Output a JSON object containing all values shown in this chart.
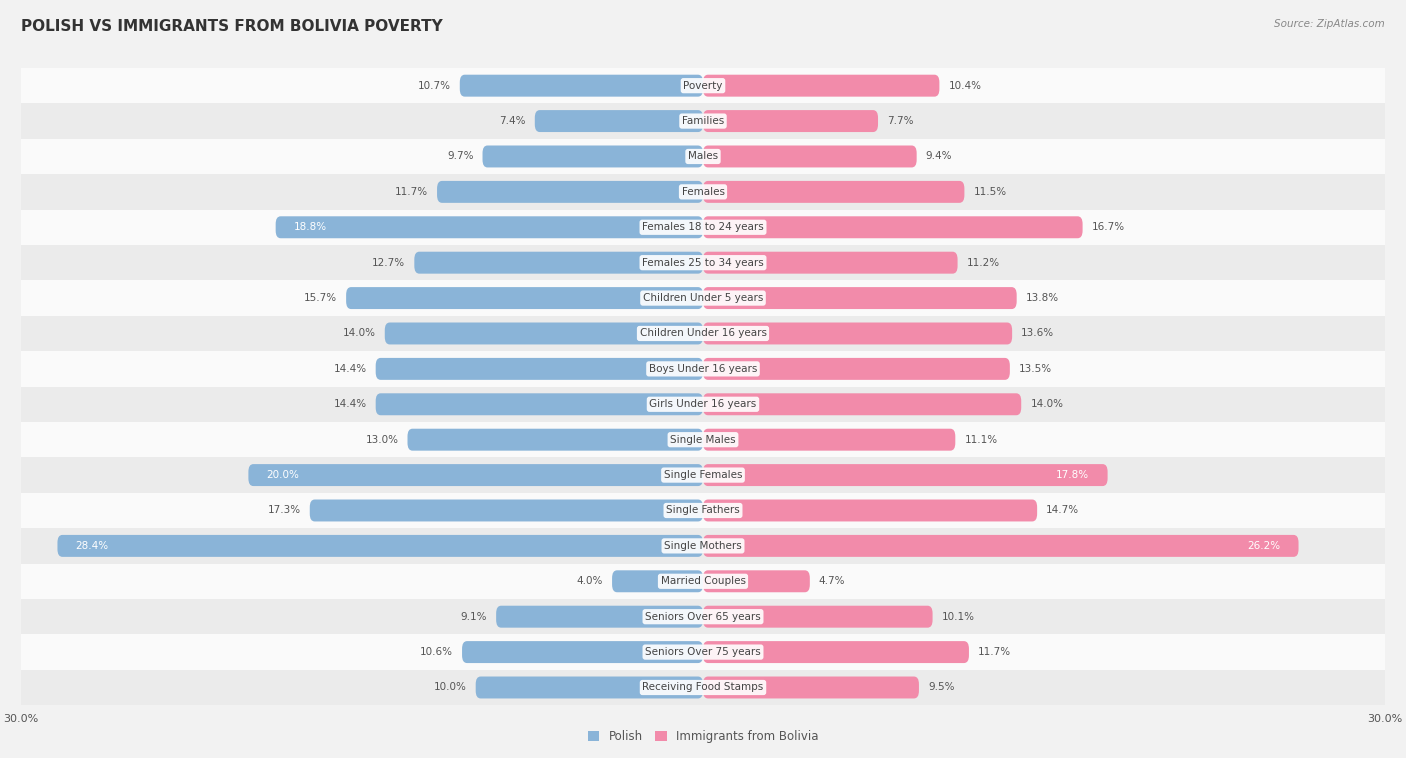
{
  "title": "POLISH VS IMMIGRANTS FROM BOLIVIA POVERTY",
  "source": "Source: ZipAtlas.com",
  "categories": [
    "Poverty",
    "Families",
    "Males",
    "Females",
    "Females 18 to 24 years",
    "Females 25 to 34 years",
    "Children Under 5 years",
    "Children Under 16 years",
    "Boys Under 16 years",
    "Girls Under 16 years",
    "Single Males",
    "Single Females",
    "Single Fathers",
    "Single Mothers",
    "Married Couples",
    "Seniors Over 65 years",
    "Seniors Over 75 years",
    "Receiving Food Stamps"
  ],
  "polish_values": [
    10.7,
    7.4,
    9.7,
    11.7,
    18.8,
    12.7,
    15.7,
    14.0,
    14.4,
    14.4,
    13.0,
    20.0,
    17.3,
    28.4,
    4.0,
    9.1,
    10.6,
    10.0
  ],
  "bolivia_values": [
    10.4,
    7.7,
    9.4,
    11.5,
    16.7,
    11.2,
    13.8,
    13.6,
    13.5,
    14.0,
    11.1,
    17.8,
    14.7,
    26.2,
    4.7,
    10.1,
    11.7,
    9.5
  ],
  "polish_color": "#8ab4d8",
  "bolivia_color": "#f28baa",
  "background_color": "#f2f2f2",
  "row_even_color": "#fafafa",
  "row_odd_color": "#ebebeb",
  "axis_limit": 30.0,
  "legend_label_polish": "Polish",
  "legend_label_bolivia": "Immigrants from Bolivia",
  "title_fontsize": 11,
  "label_fontsize": 7.5,
  "category_fontsize": 7.5,
  "legend_fontsize": 8.5,
  "source_fontsize": 7.5,
  "highlight_threshold": 17.5
}
